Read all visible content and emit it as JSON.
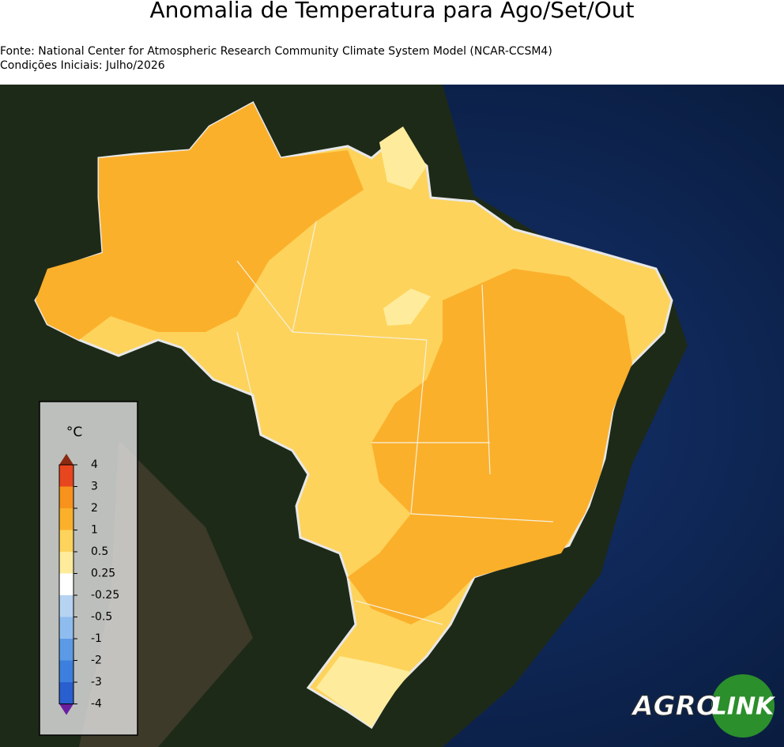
{
  "header": {
    "title": "Anomalia de Temperatura para Ago/Set/Out",
    "source": "Fonte: National Center for Atmospheric Research Community Climate System Model (NCAR-CCSM4)",
    "initial_conditions": "Condições Iniciais: Julho/2026"
  },
  "colorbar": {
    "unit": "°C",
    "ticks": [
      4,
      3,
      2,
      1,
      0.5,
      0.25,
      -0.25,
      -0.5,
      -1,
      -2,
      -3,
      -4
    ],
    "colors": [
      "#e8461e",
      "#f7921c",
      "#fbb02b",
      "#fdd35b",
      "#feec9c",
      "#ffffff",
      "#b6d3f2",
      "#8fbcef",
      "#5c9ae6",
      "#3d7fde",
      "#2a5fd0"
    ],
    "over_color": "#8a2a10",
    "under_color": "#6a1fa0"
  },
  "logo": {
    "left": "AGRO",
    "right": "LINK"
  }
}
